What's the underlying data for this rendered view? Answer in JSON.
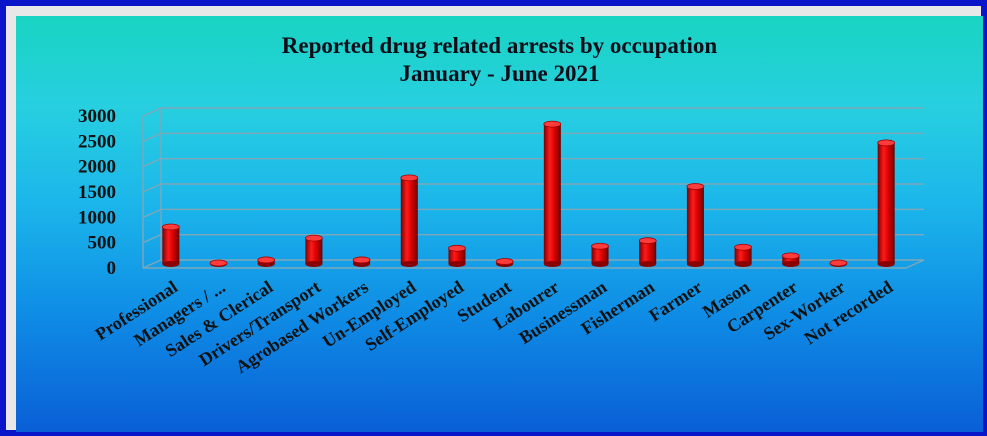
{
  "chart_data": {
    "type": "bar",
    "title": "Reported drug related arrests by occupation",
    "subtitle": "January - June 2021",
    "categories": [
      "Professional",
      "Managers / ...",
      "Sales & Clerical",
      "Drivers/Transport",
      "Agrobased Workers",
      "Un-Employed",
      "Self-Employed",
      "Student",
      "Labourer",
      "Businessman",
      "Fisherman",
      "Farmer",
      "Mason",
      "Carpenter",
      "Sex-Worker",
      "Not recorded"
    ],
    "values": [
      730,
      20,
      80,
      510,
      80,
      1700,
      310,
      50,
      2760,
      350,
      460,
      1530,
      330,
      160,
      20,
      2390
    ],
    "yticks": [
      "0",
      "500",
      "1000",
      "1500",
      "2000",
      "2500",
      "3000"
    ],
    "ylim": [
      0,
      3000
    ],
    "xlabel": "",
    "ylabel": "",
    "grid": true,
    "legend": "none",
    "bar_color": "#c80000"
  }
}
